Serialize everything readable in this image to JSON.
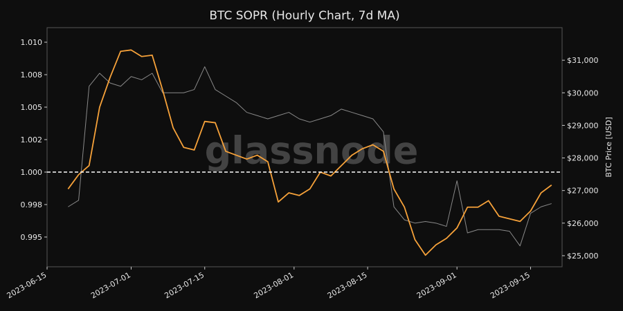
{
  "chart_data": {
    "type": "line",
    "title": "BTC SOPR (Hourly Chart, 7d MA)",
    "y2_label": "BTC Price [USD]",
    "watermark": "glassnode",
    "x": [
      "2023-06-19",
      "2023-06-21",
      "2023-06-23",
      "2023-06-25",
      "2023-06-27",
      "2023-06-29",
      "2023-07-01",
      "2023-07-03",
      "2023-07-05",
      "2023-07-07",
      "2023-07-09",
      "2023-07-11",
      "2023-07-13",
      "2023-07-15",
      "2023-07-17",
      "2023-07-19",
      "2023-07-21",
      "2023-07-23",
      "2023-07-25",
      "2023-07-27",
      "2023-07-29",
      "2023-07-31",
      "2023-08-02",
      "2023-08-04",
      "2023-08-06",
      "2023-08-08",
      "2023-08-10",
      "2023-08-12",
      "2023-08-14",
      "2023-08-16",
      "2023-08-18",
      "2023-08-20",
      "2023-08-22",
      "2023-08-24",
      "2023-08-26",
      "2023-08-28",
      "2023-08-30",
      "2023-09-01",
      "2023-09-03",
      "2023-09-05",
      "2023-09-07",
      "2023-09-09",
      "2023-09-11",
      "2023-09-13",
      "2023-09-15",
      "2023-09-17",
      "2023-09-19"
    ],
    "series": [
      {
        "name": "BTC Price",
        "color": "#8a8a8a",
        "axis": "y2",
        "values": [
          26500,
          26700,
          30200,
          30600,
          30300,
          30200,
          30500,
          30400,
          30600,
          30000,
          30000,
          30000,
          30100,
          30800,
          30100,
          29900,
          29700,
          29400,
          29300,
          29200,
          29300,
          29400,
          29200,
          29100,
          29200,
          29300,
          29500,
          29400,
          29300,
          29200,
          28800,
          26500,
          26100,
          26000,
          26050,
          26000,
          25900,
          27300,
          25700,
          25800,
          25800,
          25800,
          25750,
          25300,
          26300,
          26500,
          26600
        ]
      },
      {
        "name": "SOPR 7d MA",
        "color": "#f7a23a",
        "values": [
          0.9987,
          0.9998,
          1.0005,
          1.005,
          1.0073,
          1.0093,
          1.0094,
          1.0089,
          1.009,
          1.0063,
          1.0034,
          1.0019,
          1.0017,
          1.0039,
          1.0038,
          1.0016,
          1.0013,
          1.001,
          1.0013,
          1.0008,
          0.9977,
          0.9984,
          0.9982,
          0.9987,
          1.0,
          0.9997,
          1.0005,
          1.0013,
          1.0018,
          1.0021,
          1.0016,
          0.9987,
          0.9973,
          0.9948,
          0.9936,
          0.9944,
          0.9949,
          0.9957,
          0.9973,
          0.9973,
          0.9978,
          0.9966,
          0.9964,
          0.9962,
          0.997,
          0.9984,
          0.999
        ]
      }
    ],
    "hline": 1.0,
    "xlim": [
      "2023-06-15",
      "2023-09-21"
    ],
    "xticks": [
      "2023-06-15",
      "2023-07-01",
      "2023-07-15",
      "2023-08-01",
      "2023-08-15",
      "2023-09-01",
      "2023-09-15"
    ],
    "ylim": [
      0.99271,
      1.01112
    ],
    "yticks": [
      {
        "value": 0.995,
        "label": "0.995"
      },
      {
        "value": 0.9975,
        "label": "0.998"
      },
      {
        "value": 1.0,
        "label": "1.000"
      },
      {
        "value": 1.0025,
        "label": "1.002"
      },
      {
        "value": 1.005,
        "label": "1.005"
      },
      {
        "value": 1.0075,
        "label": "1.008"
      },
      {
        "value": 1.01,
        "label": "1.010"
      }
    ],
    "y2lim": [
      24660,
      32000
    ],
    "y2ticks": [
      {
        "value": 25000,
        "label": "$25,000"
      },
      {
        "value": 26000,
        "label": "$26,000"
      },
      {
        "value": 27000,
        "label": "$27,000"
      },
      {
        "value": 28000,
        "label": "$28,000"
      },
      {
        "value": 29000,
        "label": "$29,000"
      },
      {
        "value": 30000,
        "label": "$30,000"
      },
      {
        "value": 31000,
        "label": "$31,000"
      }
    ]
  }
}
